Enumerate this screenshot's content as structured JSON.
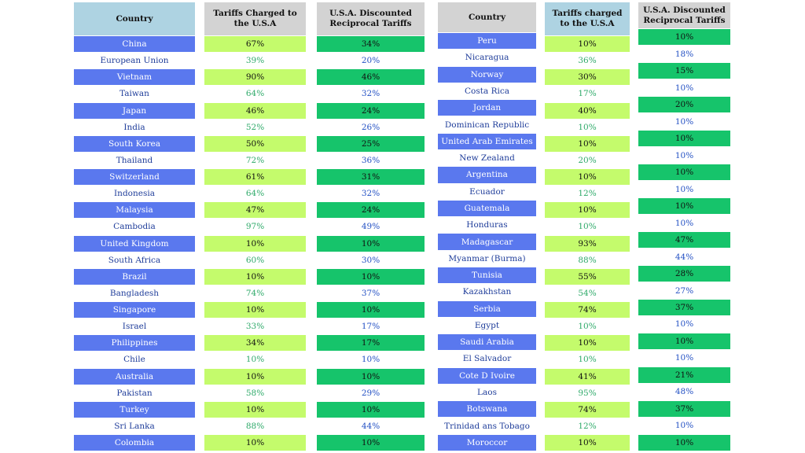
{
  "headers": {
    "country": "Country",
    "charged_left": "Tariffs Charged to the U.S.A",
    "discounted": "U.S.A. Discounted Reciprocal Tariffs",
    "charged_right": "Tariffs charged to the U.S.A"
  },
  "left_table": [
    {
      "country": "China",
      "charged": "67%",
      "discounted": "34%"
    },
    {
      "country": "European Union",
      "charged": "39%",
      "discounted": "20%"
    },
    {
      "country": "Vietnam",
      "charged": "90%",
      "discounted": "46%"
    },
    {
      "country": "Taiwan",
      "charged": "64%",
      "discounted": "32%"
    },
    {
      "country": "Japan",
      "charged": "46%",
      "discounted": "24%"
    },
    {
      "country": "India",
      "charged": "52%",
      "discounted": "26%"
    },
    {
      "country": "South Korea",
      "charged": "50%",
      "discounted": "25%"
    },
    {
      "country": "Thailand",
      "charged": "72%",
      "discounted": "36%"
    },
    {
      "country": "Switzerland",
      "charged": "61%",
      "discounted": "31%"
    },
    {
      "country": "Indonesia",
      "charged": "64%",
      "discounted": "32%"
    },
    {
      "country": "Malaysia",
      "charged": "47%",
      "discounted": "24%"
    },
    {
      "country": "Cambodia",
      "charged": "97%",
      "discounted": "49%"
    },
    {
      "country": "United Kingdom",
      "charged": "10%",
      "discounted": "10%"
    },
    {
      "country": "South Africa",
      "charged": "60%",
      "discounted": "30%"
    },
    {
      "country": "Brazil",
      "charged": "10%",
      "discounted": "10%"
    },
    {
      "country": "Bangladesh",
      "charged": "74%",
      "discounted": "37%"
    },
    {
      "country": "Singapore",
      "charged": "10%",
      "discounted": "10%"
    },
    {
      "country": "Israel",
      "charged": "33%",
      "discounted": "17%"
    },
    {
      "country": "Philippines",
      "charged": "34%",
      "discounted": "17%"
    },
    {
      "country": "Chile",
      "charged": "10%",
      "discounted": "10%"
    },
    {
      "country": "Australia",
      "charged": "10%",
      "discounted": "10%"
    },
    {
      "country": "Pakistan",
      "charged": "58%",
      "discounted": "29%"
    },
    {
      "country": "Turkey",
      "charged": "10%",
      "discounted": "10%"
    },
    {
      "country": "Sri Lanka",
      "charged": "88%",
      "discounted": "44%"
    },
    {
      "country": "Colombia",
      "charged": "10%",
      "discounted": "10%"
    }
  ],
  "right_table": [
    {
      "country": "Peru",
      "charged": "10%",
      "discounted": "10%"
    },
    {
      "country": "Nicaragua",
      "charged": "36%",
      "discounted": "18%"
    },
    {
      "country": "Norway",
      "charged": "30%",
      "discounted": "15%"
    },
    {
      "country": "Costa Rica",
      "charged": "17%",
      "discounted": "10%"
    },
    {
      "country": "Jordan",
      "charged": "40%",
      "discounted": "20%"
    },
    {
      "country": "Dominican Republic",
      "charged": "10%",
      "discounted": "10%"
    },
    {
      "country": "United Arab Emirates",
      "charged": "10%",
      "discounted": "10%"
    },
    {
      "country": "New Zealand",
      "charged": "20%",
      "discounted": "10%"
    },
    {
      "country": "Argentina",
      "charged": "10%",
      "discounted": "10%"
    },
    {
      "country": "Ecuador",
      "charged": "12%",
      "discounted": "10%"
    },
    {
      "country": "Guatemala",
      "charged": "10%",
      "discounted": "10%"
    },
    {
      "country": "Honduras",
      "charged": "10%",
      "discounted": "10%"
    },
    {
      "country": "Madagascar",
      "charged": "93%",
      "discounted": "47%"
    },
    {
      "country": "Myanmar (Burma)",
      "charged": "88%",
      "discounted": "44%"
    },
    {
      "country": "Tunisia",
      "charged": "55%",
      "discounted": "28%"
    },
    {
      "country": "Kazakhstan",
      "charged": "54%",
      "discounted": "27%"
    },
    {
      "country": "Serbia",
      "charged": "74%",
      "discounted": "37%"
    },
    {
      "country": "Egypt",
      "charged": "10%",
      "discounted": "10%"
    },
    {
      "country": "Saudi Arabia",
      "charged": "10%",
      "discounted": "10%"
    },
    {
      "country": "El Salvador",
      "charged": "10%",
      "discounted": "10%"
    },
    {
      "country": "Cote D Ivoire",
      "charged": "41%",
      "discounted": "21%"
    },
    {
      "country": "Laos",
      "charged": "95%",
      "discounted": "48%"
    },
    {
      "country": "Botswana",
      "charged": "74%",
      "discounted": "37%"
    },
    {
      "country": "Trinidad ans Tobago",
      "charged": "12%",
      "discounted": "10%"
    },
    {
      "country": "Moroccor",
      "charged": "10%",
      "discounted": "10%"
    }
  ],
  "colors": {
    "country_blue": "#5a78ee",
    "header_blue": "#aed3e2",
    "header_gray": "#d3d3d3",
    "lime": "#c4fb6c",
    "green": "#16c46b"
  }
}
